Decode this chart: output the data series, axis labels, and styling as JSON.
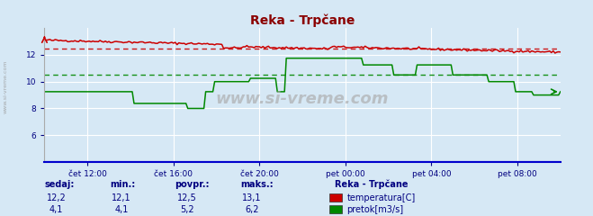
{
  "title": "Reka - Trpčane",
  "title_color": "#8b0000",
  "bg_color": "#d6e8f5",
  "grid_color": "#ffffff",
  "xlim": [
    0,
    288
  ],
  "ylim_temp": [
    4,
    14
  ],
  "ylim_flow": [
    0,
    8
  ],
  "yticks_temp": [
    6,
    8,
    10,
    12
  ],
  "ytick_temp_labels": [
    "6",
    "8",
    "10",
    "12"
  ],
  "xtick_positions": [
    24,
    72,
    120,
    168,
    216,
    264
  ],
  "xtick_labels": [
    "čet 12:00",
    "čet 16:00",
    "čet 20:00",
    "pet 00:00",
    "pet 04:00",
    "pet 08:00"
  ],
  "temp_color": "#cc0000",
  "flow_color": "#008800",
  "blue_line_color": "#0000cc",
  "avg_temp": 12.5,
  "avg_flow": 5.2,
  "watermark_text": "www.si-vreme.com",
  "legend_title": "Reka - Trpčane",
  "legend_items": [
    {
      "label": "temperatura[C]",
      "color": "#cc0000"
    },
    {
      "label": "pretok[m3/s]",
      "color": "#008800"
    }
  ],
  "table_headers": [
    "sedaj:",
    "min.:",
    "povpr.:",
    "maks.:"
  ],
  "table_temp": [
    "12,2",
    "12,1",
    "12,5",
    "13,1"
  ],
  "table_flow": [
    "4,1",
    "4,1",
    "5,2",
    "6,2"
  ],
  "table_color": "#000080"
}
